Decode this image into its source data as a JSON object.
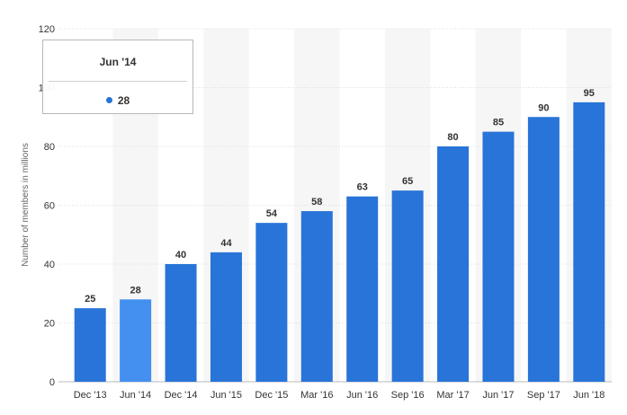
{
  "chart_data": {
    "type": "bar",
    "categories": [
      "Dec '13",
      "Jun '14",
      "Dec '14",
      "Jun '15",
      "Dec '15",
      "Mar '16",
      "Jun '16",
      "Sep '16",
      "Mar '17",
      "Jun '17",
      "Sep '17",
      "Jun '18"
    ],
    "values": [
      25,
      28,
      40,
      44,
      54,
      58,
      63,
      65,
      80,
      85,
      90,
      95
    ],
    "ylabel": "Number of members in millions",
    "ylim": [
      0,
      120
    ],
    "yticks": [
      0,
      20,
      40,
      60,
      80,
      100,
      120
    ],
    "grid": true,
    "highlighted_index": 1,
    "data_labels": true,
    "colors": {
      "bar": "#2874d8",
      "highlight": "#4490f0",
      "band": "#f6f6f6",
      "grid": "#dddddd"
    }
  },
  "tooltip": {
    "title": "Jun '14",
    "value": "28",
    "dot_color": "#2874d8"
  }
}
